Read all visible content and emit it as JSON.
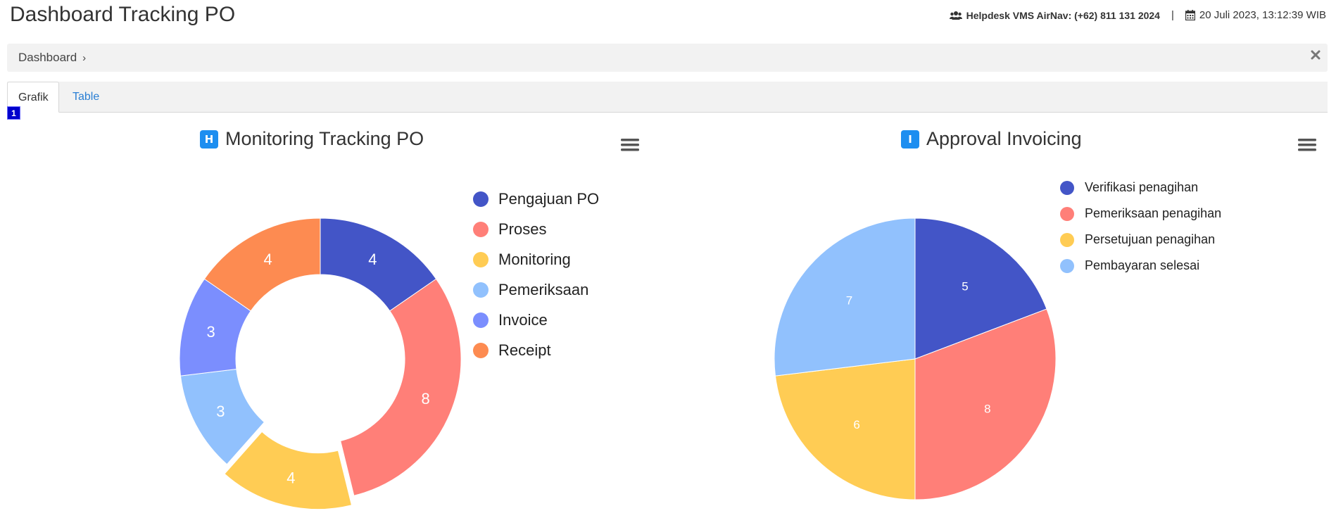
{
  "header": {
    "title": "Dashboard Tracking PO",
    "helpdesk_label": "Helpdesk VMS AirNav: (+62) 811 131 2024",
    "separator": "|",
    "datetime": "20 Juli 2023, 13:12:39 WIB"
  },
  "breadcrumb": {
    "items": [
      "Dashboard"
    ]
  },
  "tabs": [
    {
      "label": "Grafik",
      "active": true
    },
    {
      "label": "Table",
      "active": false
    }
  ],
  "tab_badge": "1",
  "charts": [
    {
      "title": "Monitoring Tracking PO",
      "title_badge": "H"
    },
    {
      "title": "Approval Invoicing",
      "title_badge": "I"
    }
  ],
  "chart_data": [
    {
      "type": "pie",
      "variant": "donut",
      "title": "Monitoring Tracking PO",
      "categories": [
        "Pengajuan PO",
        "Proses",
        "Monitoring",
        "Pemeriksaan",
        "Invoice",
        "Receipt"
      ],
      "values": [
        4,
        8,
        4,
        3,
        3,
        4
      ],
      "colors": [
        "#4355c7",
        "#ff7f78",
        "#ffcc54",
        "#91c1fd",
        "#7b8efe",
        "#fd8b51"
      ],
      "exploded": "Monitoring",
      "legend_position": "right"
    },
    {
      "type": "pie",
      "title": "Approval Invoicing",
      "categories": [
        "Verifikasi penagihan",
        "Pemeriksaan penagihan",
        "Persetujuan penagihan",
        "Pembayaran selesai"
      ],
      "values": [
        5,
        8,
        6,
        7
      ],
      "colors": [
        "#4355c7",
        "#ff7f78",
        "#ffcc54",
        "#91c1fd"
      ],
      "legend_position": "top-right"
    }
  ],
  "icons": {
    "helpdesk": "users-icon",
    "date": "calendar-icon",
    "close": "close-icon",
    "menu": "hamburger-menu-icon"
  }
}
